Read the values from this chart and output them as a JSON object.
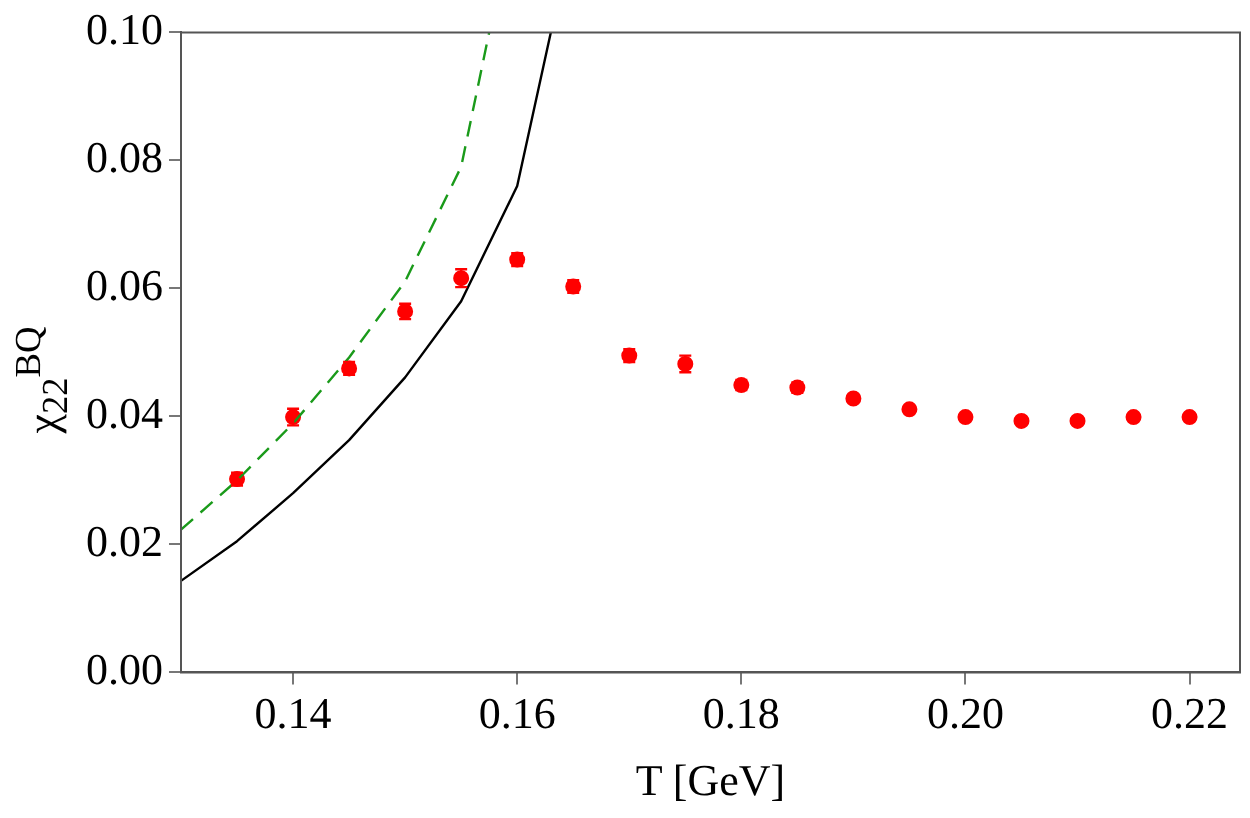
{
  "chart_data": {
    "type": "scatter",
    "xlabel": "T [GeV]",
    "ylabel": "χ$_{22}$$^{BQ}$",
    "xlim": [
      0.13,
      0.2245
    ],
    "xticks": [
      0.14,
      0.16,
      0.18,
      {
        "value": 0.2,
        "label": "0.20"
      },
      0.22
    ],
    "ylim": [
      0,
      0.1
    ],
    "yticks": [
      {
        "value": 0,
        "label": "0.00"
      },
      0.02,
      0.04,
      0.06,
      0.08,
      {
        "value": 0.1,
        "label": "0.10"
      }
    ],
    "grid": false,
    "legend": false,
    "series": [
      {
        "type": "line",
        "color": "#000000",
        "line_style": "solid",
        "marker": "none",
        "x": [
          0.13,
          0.135,
          0.14,
          0.145,
          0.15,
          0.155,
          0.16,
          0.163
        ],
        "values": [
          0.0143,
          0.0205,
          0.028,
          0.0363,
          0.0461,
          0.058,
          0.076,
          0.1
        ]
      },
      {
        "type": "line",
        "color": "#1a9a1a",
        "line_style": "dashed",
        "marker": "none",
        "x": [
          0.13,
          0.135,
          0.14,
          0.145,
          0.15,
          0.155,
          0.1575
        ],
        "values": [
          0.0223,
          0.03,
          0.0389,
          0.0492,
          0.0611,
          0.079,
          0.1
        ]
      },
      {
        "color": "#ff0000",
        "marker": "circle",
        "x": [
          0.135,
          0.14,
          0.145,
          0.15,
          0.155,
          0.16,
          0.165,
          0.17,
          0.175,
          0.18,
          0.185,
          0.19,
          0.195,
          0.2,
          0.205,
          0.21,
          0.215,
          0.22
        ],
        "values": [
          0.0302,
          0.0399,
          0.0475,
          0.0564,
          0.0616,
          0.0645,
          0.0603,
          0.0495,
          0.0482,
          0.0449,
          0.0445,
          0.0428,
          0.0411,
          0.0399,
          0.0393,
          0.0393,
          0.0399,
          0.0399
        ],
        "errors": [
          0.001,
          0.0013,
          0.001,
          0.0012,
          0.0014,
          0.001,
          0.001,
          0.001,
          0.0013,
          0.0008,
          0.0008,
          0.0005,
          0.0005,
          0.0005,
          0.0005,
          0.0005,
          0.0005,
          0.0005
        ]
      }
    ]
  }
}
